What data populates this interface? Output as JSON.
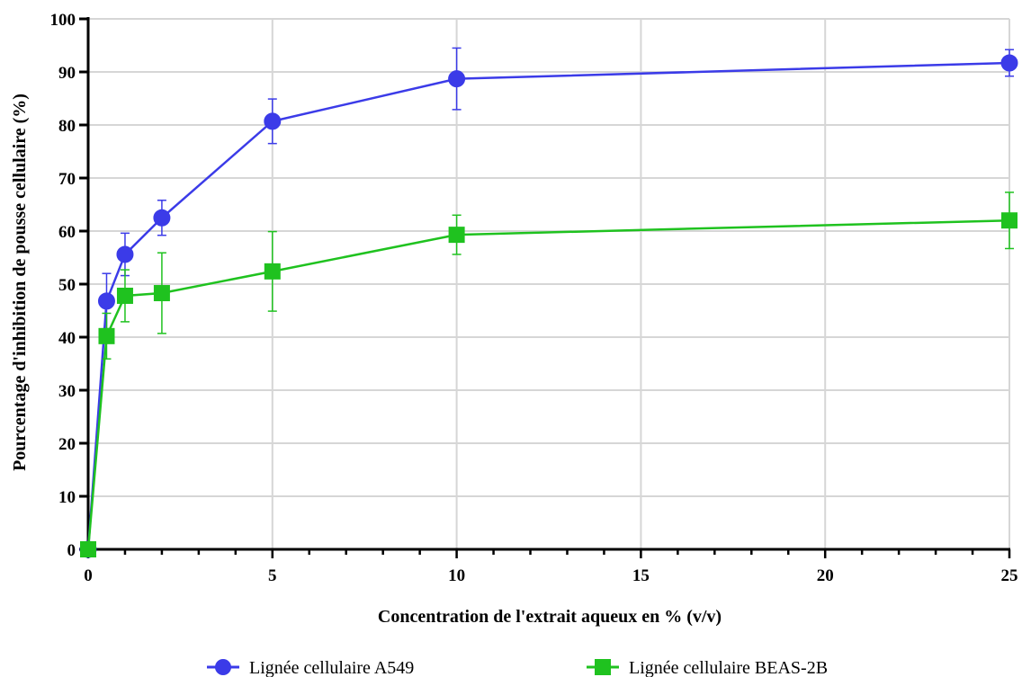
{
  "chart_data": {
    "type": "line",
    "title": "",
    "xlabel": "Concentration de l'extrait aqueux en % (v/v)",
    "ylabel": "Pourcentage d'inhibition de pousse cellulaire (%)",
    "xlim": [
      0,
      25
    ],
    "ylim": [
      0,
      100
    ],
    "x_ticks": [
      "0",
      "5",
      "10",
      "15",
      "20",
      "25"
    ],
    "y_ticks": [
      "0",
      "10",
      "20",
      "30",
      "40",
      "50",
      "60",
      "70",
      "80",
      "90",
      "100"
    ],
    "grid": true,
    "legend_position": "bottom",
    "series": [
      {
        "name": "Lignée cellulaire A549",
        "color": "#3b3be8",
        "marker": "circle",
        "x": [
          0,
          0.5,
          1,
          2,
          5,
          10,
          25
        ],
        "y": [
          0,
          46.8,
          55.6,
          62.5,
          80.7,
          88.7,
          91.7
        ],
        "err": [
          0,
          5.2,
          4.0,
          3.3,
          4.2,
          5.8,
          2.5
        ]
      },
      {
        "name": "Lignée cellulaire BEAS-2B",
        "color": "#1fc21f",
        "marker": "square",
        "x": [
          0,
          0.5,
          1,
          2,
          5,
          10,
          25
        ],
        "y": [
          0,
          40.2,
          47.8,
          48.3,
          52.4,
          59.3,
          62.0
        ],
        "err": [
          0,
          4.3,
          4.9,
          7.6,
          7.5,
          3.7,
          5.3
        ]
      }
    ]
  }
}
